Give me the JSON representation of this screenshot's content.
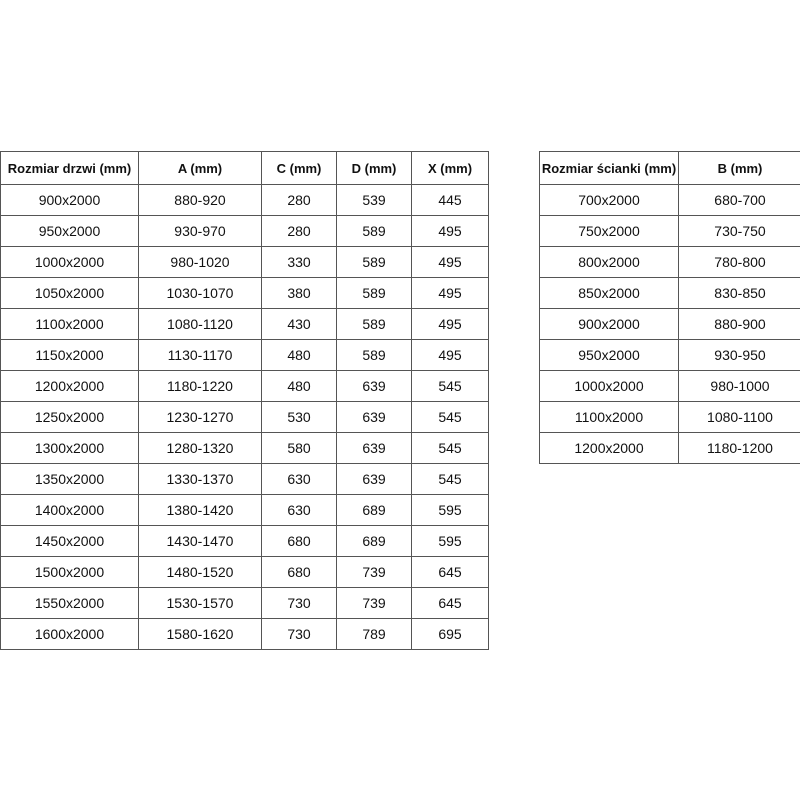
{
  "doors_table": {
    "headers": [
      "Rozmiar drzwi (mm)",
      "A (mm)",
      "C (mm)",
      "D (mm)",
      "X (mm)"
    ],
    "rows": [
      [
        "900x2000",
        "880-920",
        "280",
        "539",
        "445"
      ],
      [
        "950x2000",
        "930-970",
        "280",
        "589",
        "495"
      ],
      [
        "1000x2000",
        "980-1020",
        "330",
        "589",
        "495"
      ],
      [
        "1050x2000",
        "1030-1070",
        "380",
        "589",
        "495"
      ],
      [
        "1100x2000",
        "1080-1120",
        "430",
        "589",
        "495"
      ],
      [
        "1150x2000",
        "1130-1170",
        "480",
        "589",
        "495"
      ],
      [
        "1200x2000",
        "1180-1220",
        "480",
        "639",
        "545"
      ],
      [
        "1250x2000",
        "1230-1270",
        "530",
        "639",
        "545"
      ],
      [
        "1300x2000",
        "1280-1320",
        "580",
        "639",
        "545"
      ],
      [
        "1350x2000",
        "1330-1370",
        "630",
        "639",
        "545"
      ],
      [
        "1400x2000",
        "1380-1420",
        "630",
        "689",
        "595"
      ],
      [
        "1450x2000",
        "1430-1470",
        "680",
        "689",
        "595"
      ],
      [
        "1500x2000",
        "1480-1520",
        "680",
        "739",
        "645"
      ],
      [
        "1550x2000",
        "1530-1570",
        "730",
        "739",
        "645"
      ],
      [
        "1600x2000",
        "1580-1620",
        "730",
        "789",
        "695"
      ]
    ]
  },
  "wall_table": {
    "headers": [
      "Rozmiar ścianki (mm)",
      "B (mm)"
    ],
    "rows": [
      [
        "700x2000",
        "680-700"
      ],
      [
        "750x2000",
        "730-750"
      ],
      [
        "800x2000",
        "780-800"
      ],
      [
        "850x2000",
        "830-850"
      ],
      [
        "900x2000",
        "880-900"
      ],
      [
        "950x2000",
        "930-950"
      ],
      [
        "1000x2000",
        "980-1000"
      ],
      [
        "1100x2000",
        "1080-1100"
      ],
      [
        "1200x2000",
        "1180-1200"
      ]
    ]
  }
}
